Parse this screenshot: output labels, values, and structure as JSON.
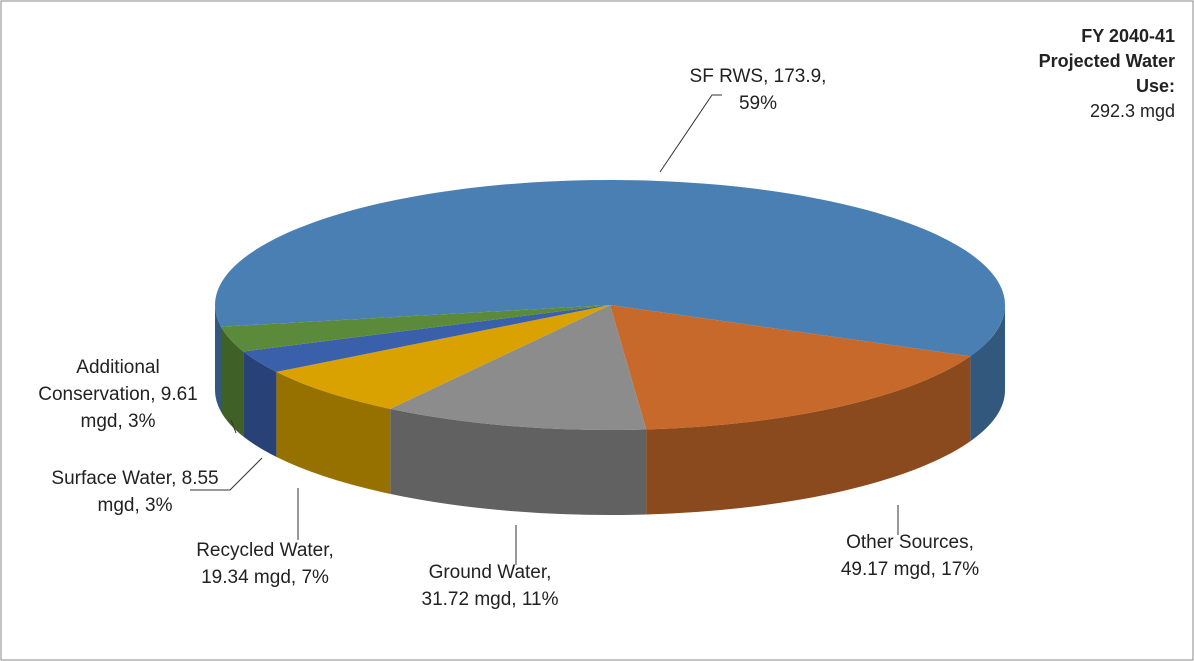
{
  "chart_data": {
    "type": "pie3d",
    "values": [
      173.9,
      49.17,
      31.72,
      19.34,
      8.55,
      9.61
    ],
    "value_labels": [
      [
        "SF RWS, 173.9,",
        "59%"
      ],
      [
        "Other Sources,",
        "49.17 mgd, 17%"
      ],
      [
        "Ground Water,",
        "31.72 mgd, 11%"
      ],
      [
        "Recycled Water,",
        "19.34 mgd, 7%"
      ],
      [
        "Surface Water, 8.55",
        "mgd, 3%"
      ],
      [
        "Additional",
        "Conservation, 9.61",
        "mgd, 3%"
      ]
    ],
    "colors": [
      "#4a7fb4",
      "#c7692b",
      "#8c8c8c",
      "#d9a200",
      "#3a5fab",
      "#5b8b3a"
    ],
    "annotation": {
      "heading": [
        "FY 2040-41",
        "Projected Water",
        "Use:"
      ],
      "text": "292.3 mgd"
    }
  }
}
